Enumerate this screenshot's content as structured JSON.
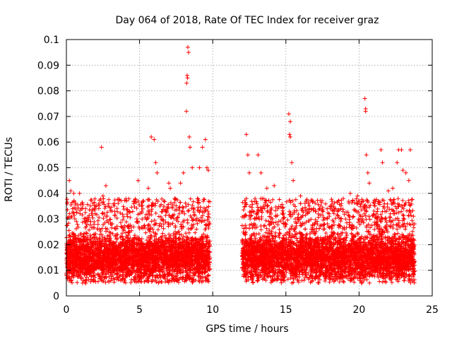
{
  "chart_data": {
    "type": "scatter",
    "title": "Day 064 of 2018, Rate Of TEC Index for receiver graz",
    "xlabel": "GPS time / hours",
    "ylabel": "ROTI / TECUs",
    "xlim": [
      0,
      25
    ],
    "ylim": [
      0,
      0.1
    ],
    "x_ticks": [
      0,
      5,
      10,
      15,
      20,
      25
    ],
    "x_tick_labels": [
      "0",
      "5",
      "10",
      "15",
      "20",
      "25"
    ],
    "y_ticks": [
      0,
      0.01,
      0.02,
      0.03,
      0.04,
      0.05,
      0.06,
      0.07,
      0.08,
      0.09,
      0.1
    ],
    "y_tick_labels": [
      "0",
      "0.01",
      "0.02",
      "0.03",
      "0.04",
      "0.05",
      "0.06",
      "0.07",
      "0.08",
      "0.09",
      "0.1"
    ],
    "grid": true,
    "marker": "+",
    "marker_color": "#ff0000",
    "data_gap_hours": [
      10.0,
      12.0
    ],
    "series": [
      {
        "name": "ROTI",
        "points": [
          [
            0.05,
            0.036
          ],
          [
            0.2,
            0.045
          ],
          [
            0.3,
            0.041
          ],
          [
            0.5,
            0.04
          ],
          [
            0.9,
            0.04
          ],
          [
            1.4,
            0.028
          ],
          [
            2.4,
            0.058
          ],
          [
            2.5,
            0.039
          ],
          [
            2.7,
            0.043
          ],
          [
            3.3,
            0.033
          ],
          [
            4.1,
            0.037
          ],
          [
            4.6,
            0.036
          ],
          [
            4.9,
            0.045
          ],
          [
            5.6,
            0.042
          ],
          [
            5.8,
            0.062
          ],
          [
            6.0,
            0.061
          ],
          [
            6.1,
            0.052
          ],
          [
            6.2,
            0.048
          ],
          [
            6.4,
            0.035
          ],
          [
            7.0,
            0.044
          ],
          [
            7.1,
            0.042
          ],
          [
            7.4,
            0.038
          ],
          [
            7.8,
            0.044
          ],
          [
            8.0,
            0.048
          ],
          [
            8.2,
            0.072
          ],
          [
            8.25,
            0.086
          ],
          [
            8.3,
            0.097
          ],
          [
            8.35,
            0.095
          ],
          [
            8.28,
            0.085
          ],
          [
            8.22,
            0.083
          ],
          [
            8.4,
            0.062
          ],
          [
            8.45,
            0.058
          ],
          [
            8.6,
            0.05
          ],
          [
            9.1,
            0.05
          ],
          [
            9.3,
            0.058
          ],
          [
            9.5,
            0.061
          ],
          [
            9.6,
            0.05
          ],
          [
            9.7,
            0.049
          ],
          [
            12.3,
            0.063
          ],
          [
            12.4,
            0.055
          ],
          [
            12.5,
            0.048
          ],
          [
            13.1,
            0.055
          ],
          [
            13.3,
            0.048
          ],
          [
            13.7,
            0.042
          ],
          [
            14.2,
            0.043
          ],
          [
            15.2,
            0.071
          ],
          [
            15.3,
            0.068
          ],
          [
            15.25,
            0.063
          ],
          [
            15.3,
            0.062
          ],
          [
            15.4,
            0.052
          ],
          [
            15.5,
            0.045
          ],
          [
            16.0,
            0.039
          ],
          [
            17.3,
            0.034
          ],
          [
            18.4,
            0.034
          ],
          [
            18.9,
            0.033
          ],
          [
            19.4,
            0.04
          ],
          [
            19.9,
            0.039
          ],
          [
            20.4,
            0.077
          ],
          [
            20.45,
            0.073
          ],
          [
            20.45,
            0.072
          ],
          [
            20.5,
            0.055
          ],
          [
            20.6,
            0.048
          ],
          [
            20.7,
            0.044
          ],
          [
            21.5,
            0.057
          ],
          [
            21.6,
            0.052
          ],
          [
            22.0,
            0.041
          ],
          [
            22.3,
            0.042
          ],
          [
            22.6,
            0.052
          ],
          [
            22.7,
            0.057
          ],
          [
            22.9,
            0.057
          ],
          [
            23.0,
            0.049
          ],
          [
            23.2,
            0.048
          ],
          [
            23.4,
            0.045
          ],
          [
            23.5,
            0.057
          ]
        ],
        "dense_band": {
          "segments": [
            [
              0.0,
              9.8
            ],
            [
              12.0,
              23.8
            ]
          ],
          "base_range": [
            0.005,
            0.026
          ],
          "typical": 0.015
        }
      }
    ]
  }
}
